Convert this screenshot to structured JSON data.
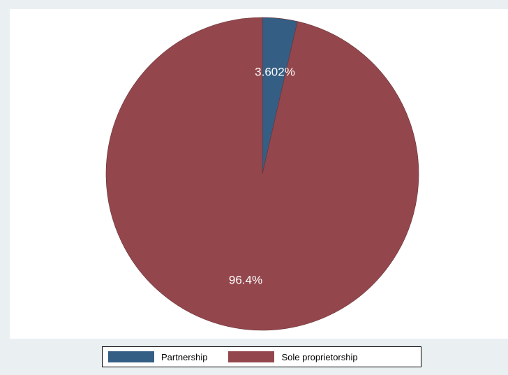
{
  "chart_data": {
    "type": "pie",
    "slices": [
      {
        "label": "Partnership",
        "value": 3.602,
        "display": "3.602%",
        "color": "#355e84"
      },
      {
        "label": "Sole proprietorship",
        "value": 96.4,
        "display": "96.4%",
        "color": "#93474d"
      }
    ],
    "start": "12 o'clock",
    "direction": "clockwise",
    "legend_position": "bottom",
    "background_color": "#eaf0f2",
    "plot_background_color": "#ffffff"
  }
}
